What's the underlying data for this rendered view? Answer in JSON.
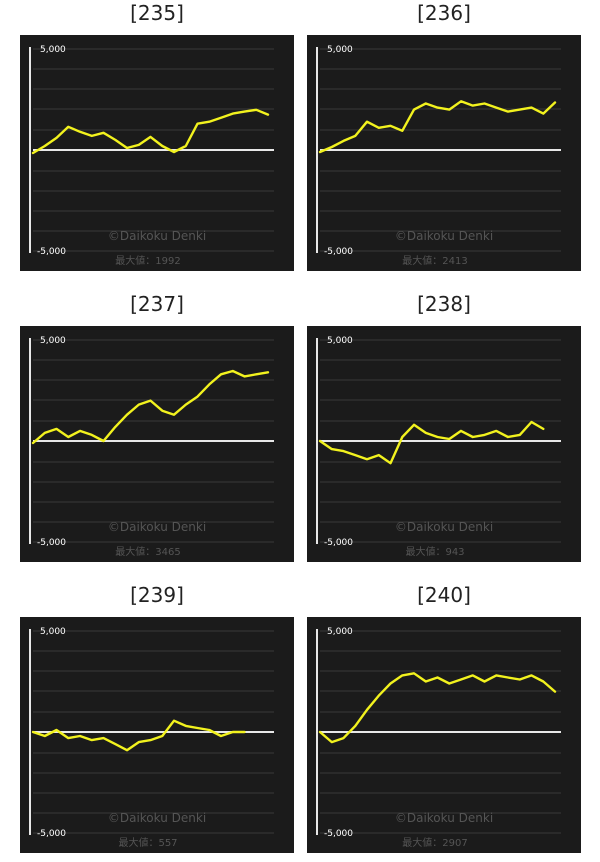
{
  "chart_data": [
    {
      "type": "line",
      "title": "[235]",
      "ylim": [
        -5000,
        5000
      ],
      "yticks": [
        "5,000",
        "-5,000"
      ],
      "grid": true,
      "line_color": "#f2f21e",
      "watermark": "©Daikoku Denki",
      "max_label": "最大値：1992",
      "x": [
        0,
        5,
        10,
        15,
        20,
        25,
        30,
        35,
        40,
        45,
        50,
        55,
        60,
        65,
        70,
        75,
        80,
        85,
        90,
        95,
        100
      ],
      "y": [
        -150,
        200,
        600,
        1150,
        900,
        700,
        850,
        500,
        100,
        250,
        650,
        200,
        -100,
        200,
        1300,
        1400,
        1600,
        1800,
        1900,
        1992,
        1750
      ]
    },
    {
      "type": "line",
      "title": "[236]",
      "ylim": [
        -5000,
        5000
      ],
      "yticks": [
        "5,000",
        "-5,000"
      ],
      "grid": true,
      "line_color": "#f2f21e",
      "watermark": "©Daikoku Denki",
      "max_label": "最大値：2413",
      "x": [
        0,
        5,
        10,
        15,
        20,
        25,
        30,
        35,
        40,
        45,
        50,
        55,
        60,
        65,
        70,
        75,
        80,
        85,
        90,
        95,
        100
      ],
      "y": [
        -100,
        150,
        450,
        700,
        1400,
        1100,
        1200,
        950,
        2000,
        2300,
        2100,
        2000,
        2413,
        2200,
        2300,
        2100,
        1900,
        2000,
        2100,
        1800,
        2350
      ]
    },
    {
      "type": "line",
      "title": "[237]",
      "ylim": [
        -5000,
        5000
      ],
      "yticks": [
        "5,000",
        "-5,000"
      ],
      "grid": true,
      "line_color": "#f2f21e",
      "watermark": "©Daikoku Denki",
      "max_label": "最大値：3465",
      "x": [
        0,
        5,
        10,
        15,
        20,
        25,
        30,
        35,
        40,
        45,
        50,
        55,
        60,
        65,
        70,
        75,
        80,
        85,
        90,
        95,
        100
      ],
      "y": [
        -100,
        400,
        600,
        200,
        500,
        300,
        0,
        700,
        1300,
        1800,
        2000,
        1500,
        1300,
        1800,
        2200,
        2800,
        3300,
        3465,
        3200,
        3300,
        3400
      ]
    },
    {
      "type": "line",
      "title": "[238]",
      "ylim": [
        -5000,
        5000
      ],
      "yticks": [
        "5,000",
        "-5,000"
      ],
      "grid": true,
      "line_color": "#f2f21e",
      "watermark": "©Daikoku Denki",
      "max_label": "最大値：943",
      "x": [
        0,
        5,
        10,
        15,
        20,
        25,
        30,
        35,
        40,
        45,
        50,
        55,
        60,
        65,
        70,
        75,
        80,
        85,
        90,
        95
      ],
      "y": [
        0,
        -400,
        -500,
        -700,
        -900,
        -700,
        -1100,
        200,
        800,
        400,
        200,
        100,
        500,
        200,
        300,
        500,
        200,
        300,
        943,
        600
      ]
    },
    {
      "type": "line",
      "title": "[239]",
      "ylim": [
        -5000,
        5000
      ],
      "yticks": [
        "5,000",
        "-5,000"
      ],
      "grid": true,
      "line_color": "#f2f21e",
      "watermark": "©Daikoku Denki",
      "max_label": "最大値：557",
      "x": [
        0,
        5,
        10,
        15,
        20,
        25,
        30,
        35,
        40,
        45,
        50,
        55,
        60,
        65,
        70,
        75,
        80,
        85,
        90
      ],
      "y": [
        0,
        -200,
        100,
        -300,
        -200,
        -400,
        -300,
        -600,
        -900,
        -500,
        -400,
        -200,
        557,
        300,
        200,
        100,
        -200,
        0,
        0
      ]
    },
    {
      "type": "line",
      "title": "[240]",
      "ylim": [
        -5000,
        5000
      ],
      "yticks": [
        "5,000",
        "-5,000"
      ],
      "grid": true,
      "line_color": "#f2f21e",
      "watermark": "©Daikoku Denki",
      "max_label": "最大値：2907",
      "x": [
        0,
        5,
        10,
        15,
        20,
        25,
        30,
        35,
        40,
        45,
        50,
        55,
        60,
        65,
        70,
        75,
        80,
        85,
        90,
        95,
        100
      ],
      "y": [
        0,
        -500,
        -300,
        300,
        1100,
        1800,
        2400,
        2800,
        2907,
        2500,
        2700,
        2400,
        2600,
        2800,
        2500,
        2800,
        2700,
        2600,
        2800,
        2500,
        2000
      ]
    }
  ]
}
